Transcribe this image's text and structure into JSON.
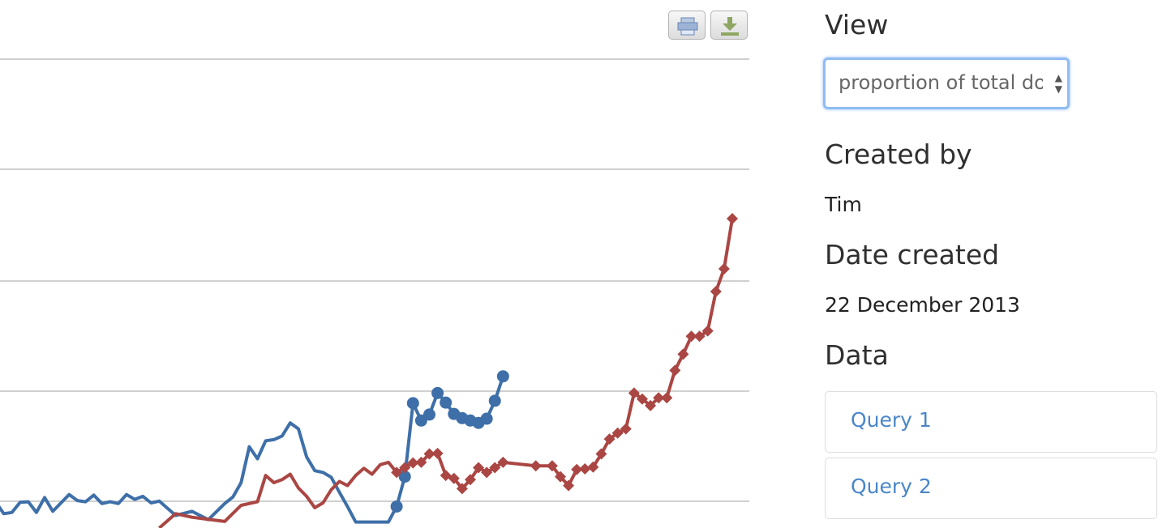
{
  "chart_data": {
    "type": "line",
    "series": [
      {
        "color": "#3e6fa8",
        "marker": "circle",
        "points": [
          [
            35.0,
            -1
          ],
          [
            35.5,
            16
          ],
          [
            36.0,
            18
          ],
          [
            36.5,
            10
          ],
          [
            37.0,
            4
          ],
          [
            37.5,
            22
          ],
          [
            38.0,
            38
          ],
          [
            38.5,
            25
          ],
          [
            39.0,
            19
          ],
          [
            39.5,
            2
          ],
          [
            40.0,
            16
          ],
          [
            40.5,
            5
          ],
          [
            41.0,
            -3
          ],
          [
            41.5,
            7
          ],
          [
            42.0,
            35
          ],
          [
            42.5,
            8
          ],
          [
            43.0,
            4
          ],
          [
            43.5,
            6
          ],
          [
            44.0,
            -9
          ],
          [
            44.5,
            -14
          ],
          [
            45.5,
            -24
          ],
          [
            46.5,
            -12
          ],
          [
            47.0,
            -5
          ],
          [
            47.5,
            3
          ],
          [
            48.0,
            15
          ],
          [
            48.5,
            -2
          ],
          [
            49.0,
            16
          ],
          [
            49.5,
            -7
          ],
          [
            50.0,
            8
          ],
          [
            50.5,
            -12
          ],
          [
            51.0,
            -10
          ],
          [
            51.5,
            7
          ],
          [
            52.0,
            8
          ],
          [
            52.5,
            -10
          ],
          [
            53.0,
            15
          ],
          [
            53.5,
            -8
          ],
          [
            54.0,
            6
          ],
          [
            54.5,
            20
          ],
          [
            55.0,
            10
          ],
          [
            55.5,
            8
          ],
          [
            56.0,
            19
          ],
          [
            56.5,
            5
          ],
          [
            57.0,
            8
          ],
          [
            57.5,
            5
          ],
          [
            58.0,
            20
          ],
          [
            58.5,
            12
          ],
          [
            59.0,
            17
          ],
          [
            59.5,
            6
          ],
          [
            60.0,
            9
          ],
          [
            61.0,
            -15
          ],
          [
            62.0,
            -8
          ],
          [
            63.0,
            -22
          ],
          [
            64.0,
            5
          ],
          [
            64.5,
            16
          ],
          [
            65.0,
            40
          ],
          [
            65.5,
            100
          ],
          [
            66.0,
            80
          ],
          [
            66.5,
            110
          ],
          [
            67.0,
            112
          ],
          [
            67.5,
            118
          ],
          [
            68.0,
            140
          ],
          [
            68.5,
            130
          ],
          [
            69.0,
            83
          ],
          [
            69.5,
            60
          ],
          [
            70.0,
            57
          ],
          [
            70.5,
            49
          ],
          [
            71.0,
            24
          ],
          [
            71.5,
            0
          ],
          [
            72.0,
            -26
          ],
          [
            74.0,
            -26
          ],
          [
            74.5,
            0
          ],
          [
            75.0,
            50
          ],
          [
            75.5,
            173
          ],
          [
            76.0,
            144
          ],
          [
            76.5,
            154
          ],
          [
            77.0,
            190
          ],
          [
            77.5,
            174
          ],
          [
            78.0,
            155
          ],
          [
            78.5,
            148
          ],
          [
            79.0,
            144
          ],
          [
            79.5,
            140
          ],
          [
            80.0,
            147
          ],
          [
            80.5,
            177
          ],
          [
            81.0,
            218
          ]
        ]
      },
      {
        "color": "#aa4643",
        "marker": "diamond",
        "points": [
          [
            60.0,
            -36
          ],
          [
            61.0,
            -12
          ],
          [
            62.0,
            -18
          ],
          [
            64.0,
            -25
          ],
          [
            65.0,
            2
          ],
          [
            66.0,
            8
          ],
          [
            66.5,
            52
          ],
          [
            67.0,
            40
          ],
          [
            67.5,
            45
          ],
          [
            68.0,
            54
          ],
          [
            68.5,
            31
          ],
          [
            69.0,
            17
          ],
          [
            69.5,
            -2
          ],
          [
            70.0,
            6
          ],
          [
            70.5,
            28
          ],
          [
            71.0,
            42
          ],
          [
            71.5,
            35
          ],
          [
            72.0,
            52
          ],
          [
            72.5,
            64
          ],
          [
            73.0,
            54
          ],
          [
            73.5,
            70
          ],
          [
            74.0,
            74
          ],
          [
            74.5,
            57
          ],
          [
            75.0,
            65
          ],
          [
            75.5,
            73
          ],
          [
            76.0,
            74
          ],
          [
            76.5,
            88
          ],
          [
            77.0,
            89
          ],
          [
            77.5,
            52
          ],
          [
            78.0,
            47
          ],
          [
            78.5,
            30
          ],
          [
            79.0,
            45
          ],
          [
            79.5,
            65
          ],
          [
            80.0,
            57
          ],
          [
            80.5,
            65
          ],
          [
            81.0,
            74
          ],
          [
            83.0,
            68
          ],
          [
            84.0,
            68
          ],
          [
            84.5,
            50
          ],
          [
            85.0,
            35
          ],
          [
            85.5,
            62
          ],
          [
            86.0,
            63
          ],
          [
            86.5,
            66
          ],
          [
            87.0,
            88
          ],
          [
            87.5,
            113
          ],
          [
            88.0,
            123
          ],
          [
            88.5,
            130
          ],
          [
            89.0,
            190
          ],
          [
            89.5,
            180
          ],
          [
            90.0,
            169
          ],
          [
            90.5,
            182
          ],
          [
            91.0,
            182
          ],
          [
            91.5,
            228
          ],
          [
            92.0,
            255
          ],
          [
            92.5,
            285
          ],
          [
            93.0,
            285
          ],
          [
            93.5,
            294
          ],
          [
            94.0,
            360
          ],
          [
            94.5,
            398
          ],
          [
            95.0,
            482
          ]
        ]
      }
    ],
    "ylim": [
      -36,
      520
    ],
    "xlim": [
      0,
      95
    ],
    "grid": true
  },
  "toolbar": {
    "print_icon": "printer-icon",
    "download_icon": "download-icon",
    "download_color": "#8ea662"
  },
  "sidebar": {
    "view_heading": "View",
    "view_selected": "proportion of total documents",
    "created_by_heading": "Created by",
    "created_by_value": "Tim",
    "date_created_heading": "Date created",
    "date_created_value": "22 December 2013",
    "data_heading": "Data",
    "queries": [
      {
        "label": "Query 1"
      },
      {
        "label": "Query 2"
      }
    ]
  },
  "colors": {
    "link": "#4a86c8",
    "focus_ring": "#8fbcf2",
    "gridline": "#c0c0c0"
  }
}
